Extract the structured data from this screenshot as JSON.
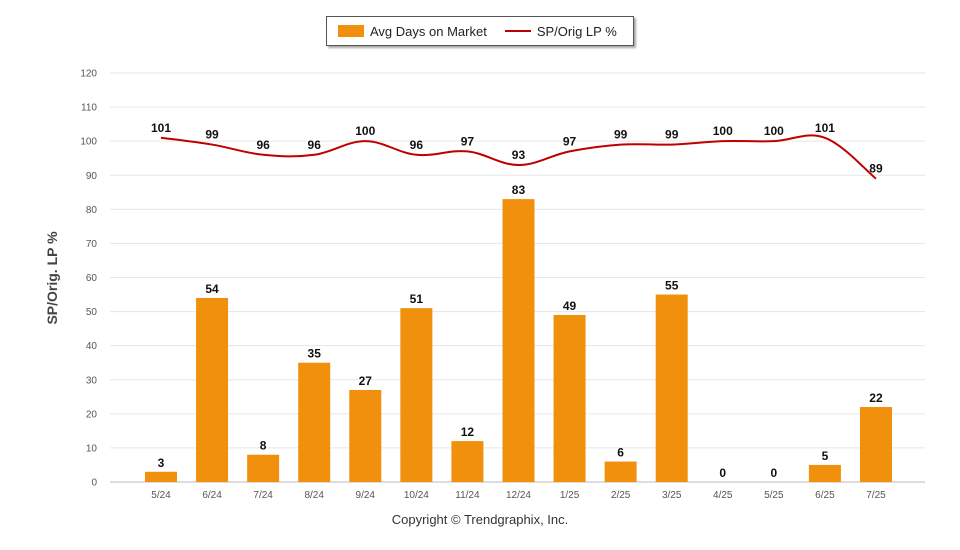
{
  "legend": {
    "bar_label": "Avg Days on Market",
    "line_label": "SP/Orig LP %"
  },
  "copyright": "Copyright © Trendgraphix, Inc.",
  "chart_data": {
    "type": "bar",
    "title": "",
    "ylabel": "SP/Orig. LP %",
    "xlabel": "",
    "ylim": [
      0,
      120
    ],
    "yticks": [
      0,
      10,
      20,
      30,
      40,
      50,
      60,
      70,
      80,
      90,
      100,
      110,
      120
    ],
    "grid": true,
    "legend_position": "top-center",
    "categories": [
      "5/24",
      "6/24",
      "7/24",
      "8/24",
      "9/24",
      "10/24",
      "11/24",
      "12/24",
      "1/25",
      "2/25",
      "3/25",
      "4/25",
      "5/25",
      "6/25",
      "7/25"
    ],
    "series": [
      {
        "name": "Avg Days on Market",
        "type": "bar",
        "color": "#f0900c",
        "values": [
          3,
          54,
          8,
          35,
          27,
          51,
          12,
          83,
          49,
          6,
          55,
          0,
          0,
          5,
          22
        ]
      },
      {
        "name": "SP/Orig LP %",
        "type": "line",
        "color": "#c00000",
        "values": [
          101,
          99,
          96,
          96,
          100,
          96,
          97,
          93,
          97,
          99,
          99,
          100,
          100,
          101,
          89
        ]
      }
    ]
  }
}
